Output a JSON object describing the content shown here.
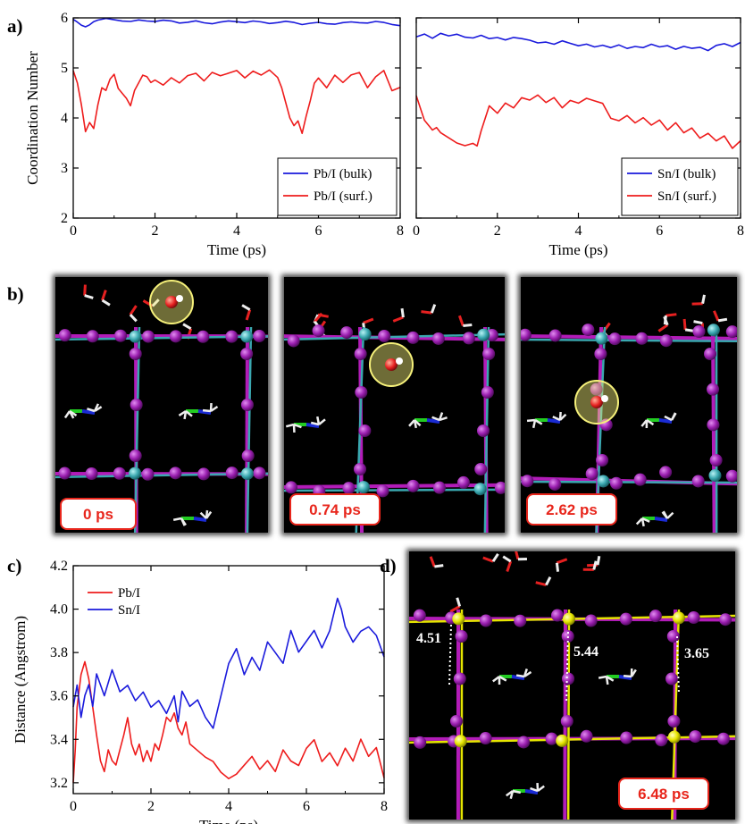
{
  "labels": {
    "panel_a": "a)",
    "panel_b": "b)",
    "panel_c": "c)",
    "panel_d": "d)"
  },
  "snapshots_b": [
    "0 ps",
    "0.74 ps",
    "2.62 ps"
  ],
  "snapshot_d": {
    "time": "6.48 ps",
    "distances": [
      "4.51",
      "5.44",
      "3.65"
    ]
  },
  "colors": {
    "blue": "#1a1adc",
    "red": "#ee1c1c",
    "sim_background": "#000000",
    "iodine": "#8b1a9b",
    "pb_sn": "#3aa8b0",
    "surf_atom": "#e6e600",
    "carbon": "#22cc22",
    "nitrogen": "#1a2bd4",
    "oxygen": "#e62020"
  },
  "chart_data": [
    {
      "type": "line",
      "id": "a-left",
      "xlabel": "Time (ps)",
      "ylabel": "Coordination Number",
      "xlim": [
        0,
        8
      ],
      "ylim": [
        2,
        6
      ],
      "xticks": [
        0,
        2,
        4,
        6,
        8
      ],
      "yticks": [
        2,
        3,
        4,
        5,
        6
      ],
      "legend": "bottom-right",
      "series": [
        {
          "name": "Pb/I (bulk)",
          "color": "#1a1adc",
          "x": [
            0,
            0.1,
            0.2,
            0.3,
            0.4,
            0.5,
            0.6,
            0.8,
            1.0,
            1.2,
            1.4,
            1.6,
            1.8,
            2.0,
            2.2,
            2.4,
            2.6,
            2.8,
            3.0,
            3.2,
            3.4,
            3.6,
            3.8,
            4.0,
            4.2,
            4.4,
            4.6,
            4.8,
            5.0,
            5.2,
            5.4,
            5.6,
            5.8,
            6.0,
            6.2,
            6.4,
            6.6,
            6.8,
            7.0,
            7.2,
            7.4,
            7.6,
            7.8,
            8.0
          ],
          "y": [
            5.97,
            5.92,
            5.86,
            5.83,
            5.87,
            5.93,
            5.96,
            5.99,
            5.96,
            5.93,
            5.92,
            5.95,
            5.93,
            5.92,
            5.95,
            5.94,
            5.9,
            5.92,
            5.95,
            5.91,
            5.89,
            5.92,
            5.94,
            5.92,
            5.9,
            5.93,
            5.91,
            5.88,
            5.9,
            5.93,
            5.91,
            5.87,
            5.9,
            5.92,
            5.89,
            5.88,
            5.91,
            5.92,
            5.9,
            5.89,
            5.92,
            5.9,
            5.86,
            5.84
          ]
        },
        {
          "name": "Pb/I (surf.)",
          "color": "#ee1c1c",
          "x": [
            0,
            0.1,
            0.2,
            0.3,
            0.4,
            0.5,
            0.6,
            0.7,
            0.8,
            0.9,
            1.0,
            1.1,
            1.2,
            1.3,
            1.4,
            1.5,
            1.6,
            1.7,
            1.8,
            1.9,
            2.0,
            2.2,
            2.4,
            2.6,
            2.8,
            3.0,
            3.2,
            3.4,
            3.6,
            3.8,
            4.0,
            4.2,
            4.4,
            4.6,
            4.8,
            5.0,
            5.1,
            5.2,
            5.3,
            5.4,
            5.5,
            5.6,
            5.7,
            5.8,
            5.9,
            6.0,
            6.2,
            6.4,
            6.6,
            6.8,
            7.0,
            7.2,
            7.4,
            7.6,
            7.8,
            8.0
          ],
          "y": [
            4.95,
            4.7,
            4.25,
            3.72,
            3.9,
            3.78,
            4.25,
            4.6,
            4.55,
            4.78,
            4.88,
            4.6,
            4.5,
            4.4,
            4.25,
            4.55,
            4.7,
            4.85,
            4.82,
            4.7,
            4.75,
            4.65,
            4.8,
            4.7,
            4.85,
            4.9,
            4.75,
            4.92,
            4.85,
            4.9,
            4.95,
            4.8,
            4.93,
            4.85,
            4.95,
            4.8,
            4.6,
            4.3,
            4.0,
            3.85,
            3.95,
            3.7,
            4.05,
            4.35,
            4.7,
            4.8,
            4.6,
            4.85,
            4.7,
            4.85,
            4.9,
            4.6,
            4.82,
            4.95,
            4.55,
            4.62
          ]
        }
      ]
    },
    {
      "type": "line",
      "id": "a-right",
      "xlabel": "Time (ps)",
      "xlim": [
        0,
        8
      ],
      "ylim": [
        2,
        6
      ],
      "xticks": [
        0,
        2,
        4,
        6,
        8
      ],
      "legend": "bottom-right",
      "series": [
        {
          "name": "Sn/I (bulk)",
          "color": "#1a1adc",
          "x": [
            0,
            0.2,
            0.4,
            0.6,
            0.8,
            1.0,
            1.2,
            1.4,
            1.6,
            1.8,
            2.0,
            2.2,
            2.4,
            2.6,
            2.8,
            3.0,
            3.2,
            3.4,
            3.6,
            3.8,
            4.0,
            4.2,
            4.4,
            4.6,
            4.8,
            5.0,
            5.2,
            5.4,
            5.6,
            5.8,
            6.0,
            6.2,
            6.4,
            6.6,
            6.8,
            7.0,
            7.2,
            7.4,
            7.6,
            7.8,
            8.0
          ],
          "y": [
            5.62,
            5.68,
            5.6,
            5.7,
            5.65,
            5.68,
            5.62,
            5.6,
            5.65,
            5.58,
            5.6,
            5.55,
            5.6,
            5.58,
            5.55,
            5.5,
            5.52,
            5.48,
            5.55,
            5.5,
            5.45,
            5.48,
            5.42,
            5.45,
            5.4,
            5.45,
            5.38,
            5.42,
            5.4,
            5.47,
            5.42,
            5.45,
            5.38,
            5.44,
            5.4,
            5.42,
            5.35,
            5.45,
            5.48,
            5.42,
            5.5
          ]
        },
        {
          "name": "Sn/I (surf.)",
          "color": "#ee1c1c",
          "x": [
            0,
            0.1,
            0.2,
            0.3,
            0.4,
            0.5,
            0.6,
            0.8,
            1.0,
            1.2,
            1.4,
            1.5,
            1.6,
            1.8,
            2.0,
            2.2,
            2.4,
            2.6,
            2.8,
            3.0,
            3.2,
            3.4,
            3.6,
            3.8,
            4.0,
            4.2,
            4.4,
            4.6,
            4.8,
            5.0,
            5.2,
            5.4,
            5.6,
            5.8,
            6.0,
            6.2,
            6.4,
            6.6,
            6.8,
            7.0,
            7.2,
            7.4,
            7.6,
            7.8,
            8.0
          ],
          "y": [
            4.45,
            4.2,
            3.95,
            3.85,
            3.75,
            3.8,
            3.7,
            3.6,
            3.5,
            3.45,
            3.5,
            3.45,
            3.75,
            4.25,
            4.1,
            4.3,
            4.2,
            4.4,
            4.35,
            4.45,
            4.3,
            4.4,
            4.2,
            4.35,
            4.3,
            4.4,
            4.35,
            4.3,
            4.0,
            3.95,
            4.05,
            3.9,
            4.0,
            3.85,
            3.95,
            3.75,
            3.9,
            3.7,
            3.8,
            3.6,
            3.7,
            3.55,
            3.65,
            3.4,
            3.55
          ]
        }
      ]
    },
    {
      "type": "line",
      "id": "c",
      "xlabel": "Time (ps)",
      "ylabel": "Distance (Angstrom)",
      "xlim": [
        0,
        8
      ],
      "ylim": [
        3.15,
        4.2
      ],
      "xticks": [
        0,
        2,
        4,
        6,
        8
      ],
      "yticks": [
        3.2,
        3.4,
        3.6,
        3.8,
        4.0,
        4.2
      ],
      "legend": "top-left",
      "series": [
        {
          "name": "Pb/I",
          "color": "#ee1c1c",
          "x": [
            0,
            0.05,
            0.1,
            0.2,
            0.3,
            0.4,
            0.5,
            0.6,
            0.7,
            0.8,
            0.9,
            1.0,
            1.1,
            1.2,
            1.3,
            1.4,
            1.5,
            1.6,
            1.7,
            1.8,
            1.9,
            2.0,
            2.1,
            2.2,
            2.3,
            2.4,
            2.5,
            2.6,
            2.7,
            2.8,
            2.9,
            3.0,
            3.2,
            3.4,
            3.6,
            3.8,
            4.0,
            4.2,
            4.4,
            4.6,
            4.8,
            5.0,
            5.2,
            5.4,
            5.6,
            5.8,
            6.0,
            6.2,
            6.4,
            6.6,
            6.8,
            7.0,
            7.2,
            7.4,
            7.6,
            7.8,
            8.0
          ],
          "y": [
            3.2,
            3.35,
            3.55,
            3.7,
            3.76,
            3.68,
            3.55,
            3.42,
            3.3,
            3.25,
            3.35,
            3.3,
            3.28,
            3.35,
            3.42,
            3.5,
            3.38,
            3.33,
            3.38,
            3.3,
            3.35,
            3.3,
            3.38,
            3.35,
            3.42,
            3.5,
            3.48,
            3.52,
            3.45,
            3.42,
            3.48,
            3.38,
            3.35,
            3.32,
            3.3,
            3.25,
            3.22,
            3.24,
            3.28,
            3.32,
            3.26,
            3.3,
            3.25,
            3.35,
            3.3,
            3.28,
            3.36,
            3.4,
            3.3,
            3.34,
            3.28,
            3.36,
            3.3,
            3.4,
            3.32,
            3.36,
            3.22
          ]
        },
        {
          "name": "Sn/I",
          "color": "#1a1adc",
          "x": [
            0,
            0.1,
            0.2,
            0.3,
            0.4,
            0.5,
            0.6,
            0.8,
            1.0,
            1.2,
            1.4,
            1.6,
            1.8,
            2.0,
            2.2,
            2.4,
            2.6,
            2.7,
            2.8,
            3.0,
            3.2,
            3.4,
            3.6,
            3.8,
            4.0,
            4.2,
            4.4,
            4.6,
            4.8,
            5.0,
            5.2,
            5.4,
            5.6,
            5.8,
            6.0,
            6.2,
            6.4,
            6.6,
            6.8,
            6.9,
            7.0,
            7.2,
            7.4,
            7.6,
            7.8,
            8.0
          ],
          "y": [
            3.55,
            3.65,
            3.5,
            3.6,
            3.65,
            3.55,
            3.7,
            3.6,
            3.72,
            3.62,
            3.65,
            3.58,
            3.62,
            3.55,
            3.58,
            3.52,
            3.6,
            3.48,
            3.62,
            3.55,
            3.58,
            3.5,
            3.45,
            3.6,
            3.75,
            3.82,
            3.7,
            3.78,
            3.72,
            3.85,
            3.8,
            3.75,
            3.9,
            3.8,
            3.85,
            3.9,
            3.82,
            3.9,
            4.05,
            4.0,
            3.92,
            3.85,
            3.9,
            3.92,
            3.88,
            3.78
          ]
        }
      ]
    }
  ]
}
